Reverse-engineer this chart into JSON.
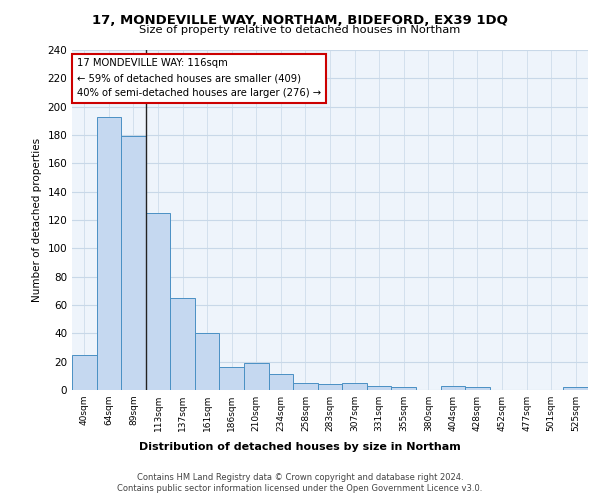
{
  "title1": "17, MONDEVILLE WAY, NORTHAM, BIDEFORD, EX39 1DQ",
  "title2": "Size of property relative to detached houses in Northam",
  "xlabel": "Distribution of detached houses by size in Northam",
  "ylabel": "Number of detached properties",
  "categories": [
    "40sqm",
    "64sqm",
    "89sqm",
    "113sqm",
    "137sqm",
    "161sqm",
    "186sqm",
    "210sqm",
    "234sqm",
    "258sqm",
    "283sqm",
    "307sqm",
    "331sqm",
    "355sqm",
    "380sqm",
    "404sqm",
    "428sqm",
    "452sqm",
    "477sqm",
    "501sqm",
    "525sqm"
  ],
  "values": [
    25,
    193,
    179,
    125,
    65,
    40,
    16,
    19,
    11,
    5,
    4,
    5,
    3,
    2,
    0,
    3,
    2,
    0,
    0,
    0,
    2
  ],
  "bar_color": "#c5d8f0",
  "bar_edge_color": "#4a90c4",
  "annotation_line1": "17 MONDEVILLE WAY: 116sqm",
  "annotation_line2": "← 59% of detached houses are smaller (409)",
  "annotation_line3": "40% of semi-detached houses are larger (276) →",
  "vline_x": 2.5,
  "vline_color": "#222222",
  "annotation_box_color": "#ffffff",
  "annotation_box_edge": "#cc0000",
  "grid_color": "#c8d8e8",
  "background_color": "#eef4fb",
  "footer_line1": "Contains HM Land Registry data © Crown copyright and database right 2024.",
  "footer_line2": "Contains public sector information licensed under the Open Government Licence v3.0.",
  "ylim": [
    0,
    240
  ],
  "yticks": [
    0,
    20,
    40,
    60,
    80,
    100,
    120,
    140,
    160,
    180,
    200,
    220,
    240
  ]
}
